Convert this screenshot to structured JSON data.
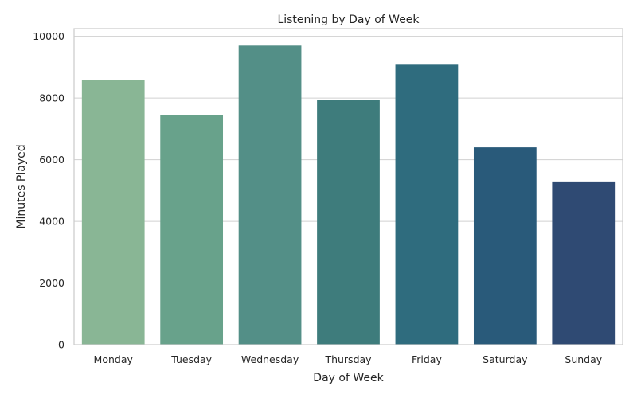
{
  "chart_data": {
    "type": "bar",
    "title": "Listening by Day of Week",
    "xlabel": "Day of Week",
    "ylabel": "Minutes Played",
    "categories": [
      "Monday",
      "Tuesday",
      "Wednesday",
      "Thursday",
      "Friday",
      "Saturday",
      "Sunday"
    ],
    "values": [
      8590,
      7440,
      9700,
      7950,
      9080,
      6400,
      5270
    ],
    "colors": [
      "#89b695",
      "#68a28b",
      "#538f87",
      "#3e7c7c",
      "#2f6c7e",
      "#295a7a",
      "#2f4a73"
    ],
    "ylim": [
      0,
      10250
    ],
    "yticks": [
      0,
      2000,
      4000,
      6000,
      8000,
      10000
    ],
    "grid": "y",
    "legend": "none"
  }
}
